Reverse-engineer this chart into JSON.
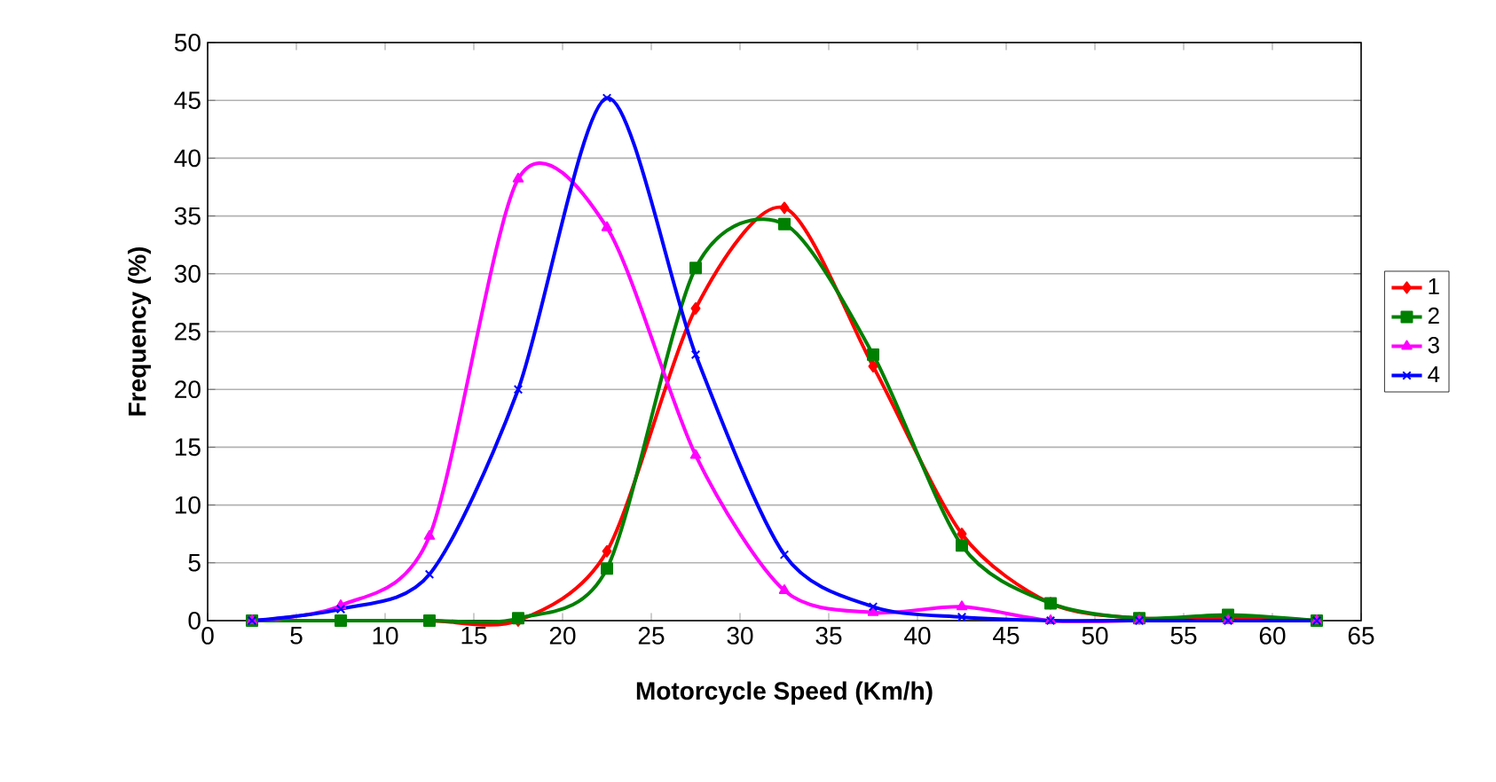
{
  "chart_data": {
    "type": "line",
    "xlabel": "Motorcycle Speed (Km/h)",
    "ylabel": "Frequency (%)",
    "x": [
      2.5,
      7.5,
      12.5,
      17.5,
      22.5,
      27.5,
      32.5,
      37.5,
      42.5,
      47.5,
      52.5,
      57.5,
      62.5
    ],
    "series": [
      {
        "name": "1",
        "color": "#ff0000",
        "marker": "diamond",
        "values": [
          0,
          0,
          0,
          0,
          6,
          27,
          35.7,
          22,
          7.5,
          1.5,
          0.2,
          0.3,
          0
        ]
      },
      {
        "name": "2",
        "color": "#008000",
        "marker": "square",
        "values": [
          0,
          0,
          0,
          0.2,
          4.5,
          30.5,
          34.3,
          23,
          6.5,
          1.5,
          0.2,
          0.5,
          0
        ]
      },
      {
        "name": "3",
        "color": "#ff00ff",
        "marker": "triangle",
        "values": [
          0,
          1.3,
          7.3,
          38.2,
          34,
          14.3,
          2.6,
          0.7,
          1.2,
          0,
          0,
          0,
          0
        ]
      },
      {
        "name": "4",
        "color": "#0000ff",
        "marker": "cross",
        "values": [
          0,
          1,
          4,
          20,
          45.2,
          23,
          5.7,
          1.2,
          0.3,
          0,
          0,
          0,
          0
        ]
      }
    ],
    "xlim": [
      0,
      65
    ],
    "xticks": [
      0,
      5,
      10,
      15,
      20,
      25,
      30,
      35,
      40,
      45,
      50,
      55,
      60,
      65
    ],
    "ylim": [
      0,
      50
    ],
    "yticks": [
      0,
      5,
      10,
      15,
      20,
      25,
      30,
      35,
      40,
      45,
      50
    ],
    "grid": "y",
    "legend": "right",
    "line_style": "solid"
  }
}
